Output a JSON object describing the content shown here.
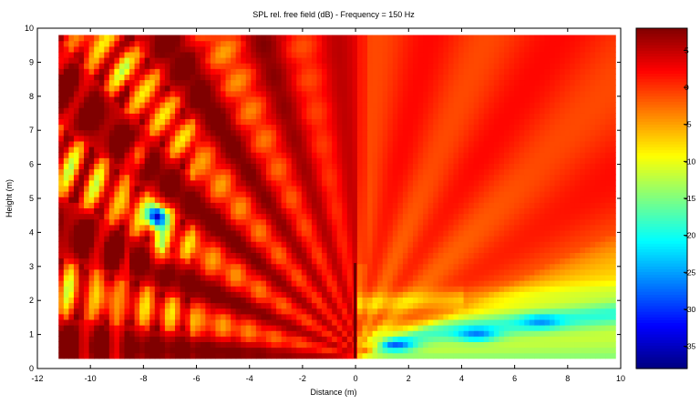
{
  "chart_data": {
    "type": "heatmap",
    "title": "SPL rel. free field (dB) - Frequency = 150 Hz",
    "xlabel": "Distance (m)",
    "ylabel": "Height (m)",
    "xlim": [
      -12,
      10
    ],
    "ylim": [
      0,
      10
    ],
    "data_extent": {
      "x": [
        -11.2,
        9.8
      ],
      "y": [
        0.3,
        9.8
      ]
    },
    "xticks": [
      -12,
      -10,
      -8,
      -6,
      -4,
      -2,
      0,
      2,
      4,
      6,
      8,
      10
    ],
    "yticks": [
      0,
      1,
      2,
      3,
      4,
      5,
      6,
      7,
      8,
      9,
      10
    ],
    "colorbar": {
      "ticks": [
        5,
        0,
        -5,
        -10,
        -15,
        -20,
        -25,
        -30,
        -35
      ],
      "range": [
        -38,
        8
      ],
      "colormap": "jet"
    },
    "barrier": {
      "x": 0,
      "height_top": 3.1
    },
    "features": [
      {
        "name": "deep-minimum",
        "x": -7.5,
        "y": 4.5,
        "value": -35
      },
      {
        "name": "shadow-band-minimum",
        "x": 1.5,
        "y": 0.7,
        "value": -32
      },
      {
        "name": "shadow-band-minimum",
        "x": 4.6,
        "y": 1.0,
        "value": -28
      },
      {
        "name": "shadow-band-minimum",
        "x": 7.0,
        "y": 1.4,
        "value": -25
      }
    ]
  }
}
